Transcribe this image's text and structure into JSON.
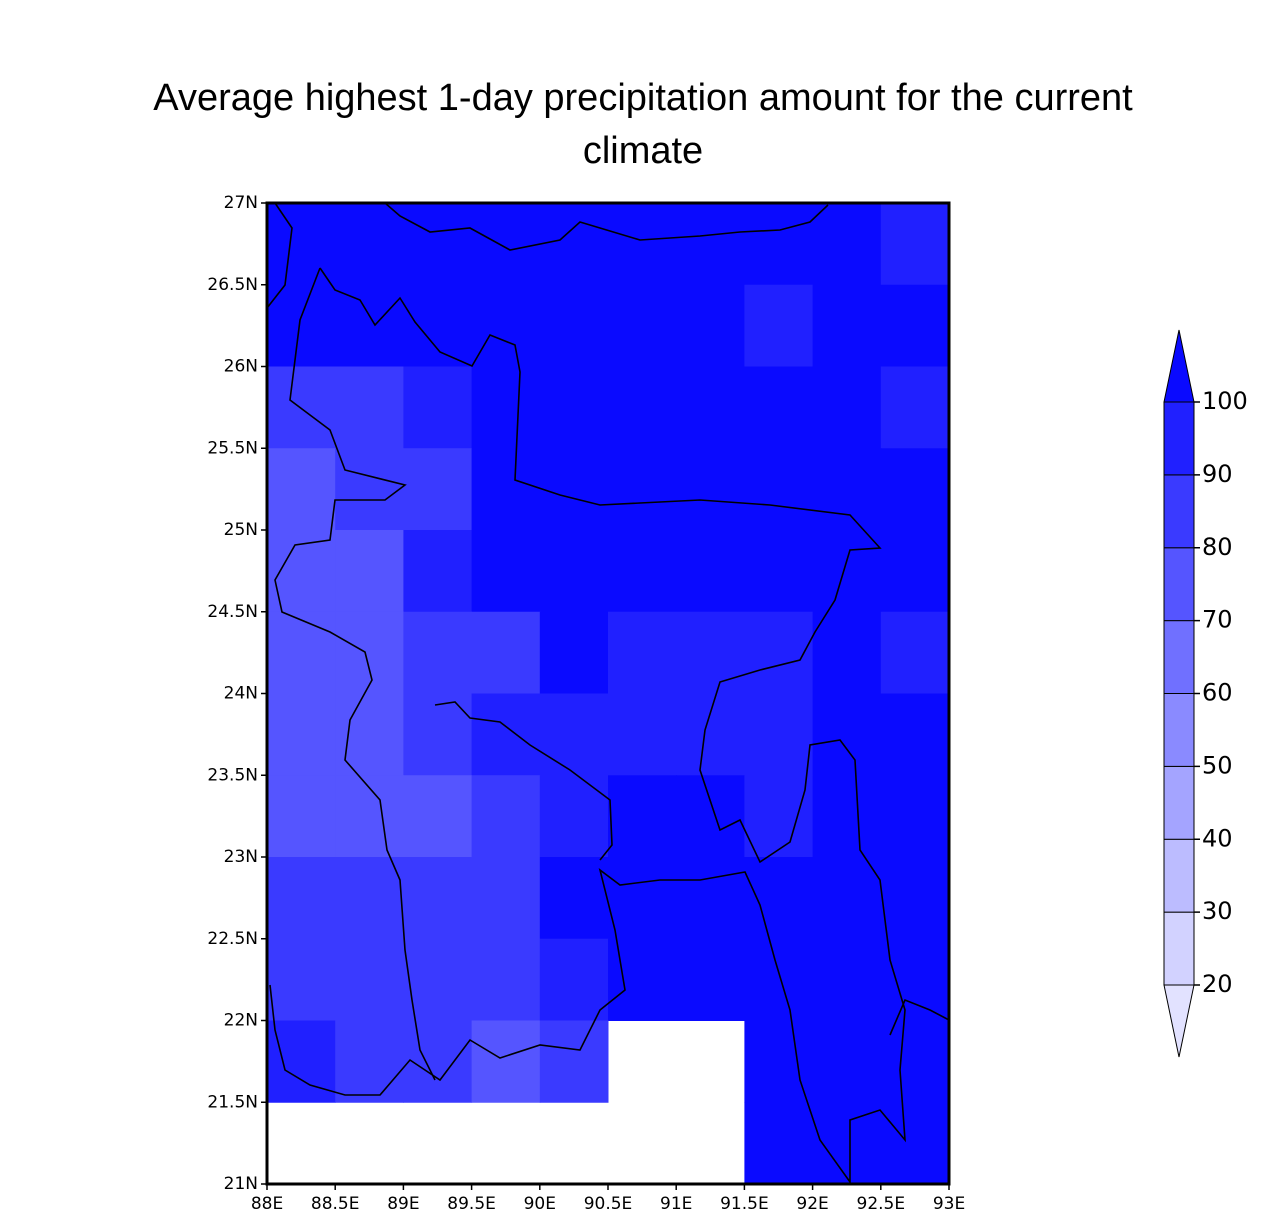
{
  "chart_data": {
    "type": "heatmap",
    "title": "Average highest 1-day precipitation amount for the current climate",
    "xlim": [
      88,
      93
    ],
    "ylim": [
      21,
      27
    ],
    "xticks": [
      {
        "value": 88,
        "label": "88E"
      },
      {
        "value": 88.5,
        "label": "88.5E"
      },
      {
        "value": 89,
        "label": "89E"
      },
      {
        "value": 89.5,
        "label": "89.5E"
      },
      {
        "value": 90,
        "label": "90E"
      },
      {
        "value": 90.5,
        "label": "90.5E"
      },
      {
        "value": 91,
        "label": "91E"
      },
      {
        "value": 91.5,
        "label": "91.5E"
      },
      {
        "value": 92,
        "label": "92E"
      },
      {
        "value": 92.5,
        "label": "92.5E"
      },
      {
        "value": 93,
        "label": "93E"
      }
    ],
    "yticks": [
      {
        "value": 21,
        "label": "21N"
      },
      {
        "value": 21.5,
        "label": "21.5N"
      },
      {
        "value": 22,
        "label": "22N"
      },
      {
        "value": 22.5,
        "label": "22.5N"
      },
      {
        "value": 23,
        "label": "23N"
      },
      {
        "value": 23.5,
        "label": "23.5N"
      },
      {
        "value": 24,
        "label": "24N"
      },
      {
        "value": 24.5,
        "label": "24.5N"
      },
      {
        "value": 25,
        "label": "25N"
      },
      {
        "value": 25.5,
        "label": "25.5N"
      },
      {
        "value": 26,
        "label": "26N"
      },
      {
        "value": 26.5,
        "label": "26.5N"
      },
      {
        "value": 27,
        "label": "27N"
      }
    ],
    "z": [
      [
        105,
        105,
        105,
        105,
        105,
        105,
        105,
        105,
        105,
        95
      ],
      [
        105,
        105,
        105,
        105,
        105,
        105,
        105,
        95,
        105,
        105
      ],
      [
        85,
        85,
        95,
        105,
        105,
        105,
        105,
        105,
        105,
        95
      ],
      [
        75,
        85,
        85,
        105,
        105,
        105,
        105,
        105,
        105,
        105
      ],
      [
        75,
        75,
        95,
        105,
        105,
        105,
        105,
        105,
        105,
        105
      ],
      [
        75,
        75,
        85,
        85,
        105,
        95,
        95,
        95,
        105,
        95
      ],
      [
        75,
        75,
        85,
        95,
        95,
        95,
        95,
        95,
        105,
        105
      ],
      [
        75,
        75,
        75,
        85,
        95,
        105,
        105,
        95,
        105,
        105
      ],
      [
        85,
        85,
        85,
        85,
        105,
        105,
        105,
        105,
        105,
        105
      ],
      [
        85,
        85,
        85,
        85,
        95,
        105,
        105,
        105,
        105,
        105
      ],
      [
        95,
        85,
        85,
        75,
        85,
        null,
        null,
        105,
        105,
        105
      ],
      [
        null,
        null,
        null,
        null,
        null,
        null,
        null,
        105,
        105,
        105
      ]
    ],
    "levels": [
      20,
      30,
      40,
      50,
      60,
      70,
      80,
      90,
      100
    ],
    "colors": [
      "#e2e2ff",
      "#d2d2ff",
      "#bcbcff",
      "#a4a4ff",
      "#8a8aff",
      "#7070ff",
      "#5555ff",
      "#3a3aff",
      "#2020ff",
      "#0a0aff"
    ]
  }
}
